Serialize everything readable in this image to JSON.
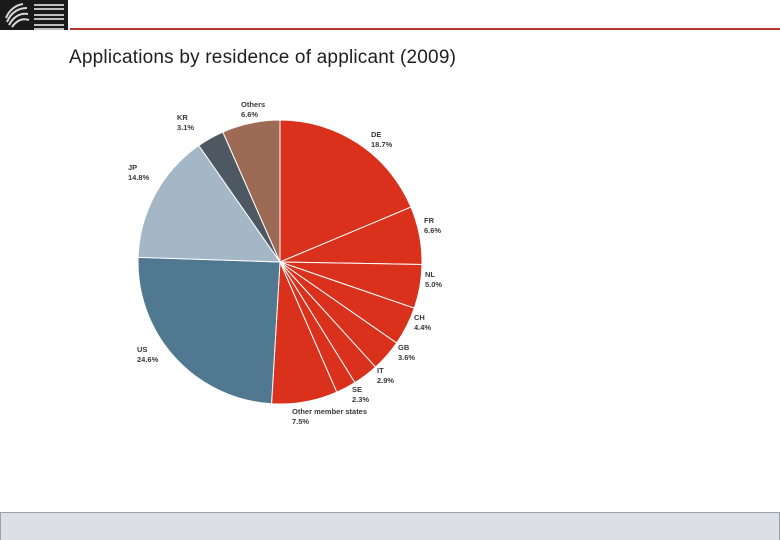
{
  "page": {
    "title": "Applications by residence of applicant (2009)",
    "logo_icon": "epo-logo-icon",
    "accent_color": "#b6332b"
  },
  "chart_data": {
    "type": "pie",
    "title": "Applications by residence of applicant (2009)",
    "unit": "%",
    "slices": [
      {
        "name": "DE",
        "value": 18.7,
        "label": "18.7%",
        "color": "#d9311b"
      },
      {
        "name": "FR",
        "value": 6.6,
        "label": "6.6%",
        "color": "#d9311b"
      },
      {
        "name": "NL",
        "value": 5.0,
        "label": "5.0%",
        "color": "#d9311b"
      },
      {
        "name": "CH",
        "value": 4.4,
        "label": "4.4%",
        "color": "#d9311b"
      },
      {
        "name": "GB",
        "value": 3.6,
        "label": "3.6%",
        "color": "#d9311b"
      },
      {
        "name": "IT",
        "value": 2.9,
        "label": "2.9%",
        "color": "#d9311b"
      },
      {
        "name": "SE",
        "value": 2.3,
        "label": "2.3%",
        "color": "#d9311b"
      },
      {
        "name": "Other member states",
        "value": 7.5,
        "label": "7.5%",
        "color": "#d9311b"
      },
      {
        "name": "US",
        "value": 24.6,
        "label": "24.6%",
        "color": "#517891"
      },
      {
        "name": "JP",
        "value": 14.8,
        "label": "14.8%",
        "color": "#a3b7c6"
      },
      {
        "name": "KR",
        "value": 3.1,
        "label": "3.1%",
        "color": "#4d5862"
      },
      {
        "name": "Others",
        "value": 6.6,
        "label": "6.6%",
        "color": "#9c6a55"
      }
    ]
  }
}
